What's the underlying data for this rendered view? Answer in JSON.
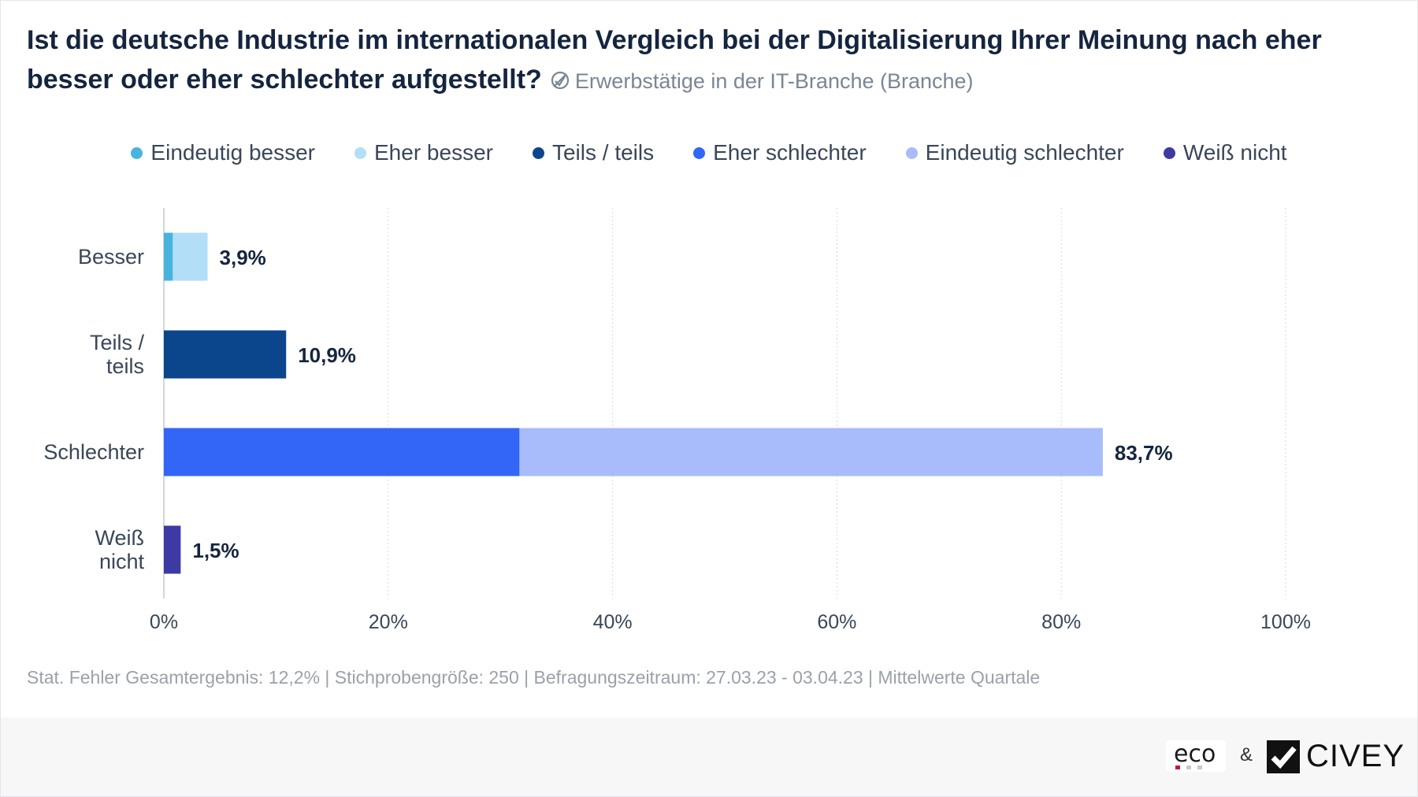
{
  "header": {
    "title": "Ist die deutsche Industrie im internationalen Vergleich bei der Digitalisierung Ihrer Meinung nach eher besser oder eher schlechter aufgestellt?",
    "filter_icon": "filter-off-icon",
    "subtitle": "Erwerbstätige in der IT-Branche (Branche)"
  },
  "legend": [
    {
      "label": "Eindeutig besser",
      "color": "#48b4de"
    },
    {
      "label": "Eher besser",
      "color": "#b3def7"
    },
    {
      "label": "Teils / teils",
      "color": "#0b468c"
    },
    {
      "label": "Eher schlechter",
      "color": "#3366f6"
    },
    {
      "label": "Eindeutig schlechter",
      "color": "#a8bcfb"
    },
    {
      "label": "Weiß nicht",
      "color": "#3d3aa3"
    }
  ],
  "chart_data": {
    "type": "bar",
    "orientation": "horizontal",
    "stacked": true,
    "categories": [
      [
        "Besser"
      ],
      [
        "Teils /",
        "teils"
      ],
      [
        "Schlechter"
      ],
      [
        "Weiß",
        "nicht"
      ]
    ],
    "totals_labels": [
      "3,9%",
      "10,9%",
      "83,7%",
      "1,5%"
    ],
    "segments": [
      [
        {
          "series": "Eindeutig besser",
          "value": 0.8,
          "color": "#48b4de"
        },
        {
          "series": "Eher besser",
          "value": 3.1,
          "color": "#b3def7"
        }
      ],
      [
        {
          "series": "Teils / teils",
          "value": 10.9,
          "color": "#0b468c"
        }
      ],
      [
        {
          "series": "Eher schlechter",
          "value": 31.7,
          "color": "#3366f6"
        },
        {
          "series": "Eindeutig schlechter",
          "value": 52.0,
          "color": "#a8bcfb"
        }
      ],
      [
        {
          "series": "Weiß nicht",
          "value": 1.5,
          "color": "#3d3aa3"
        }
      ]
    ],
    "xlim": [
      0,
      100
    ],
    "xticks": [
      "0%",
      "20%",
      "40%",
      "60%",
      "80%",
      "100%"
    ],
    "grid": true
  },
  "footnote": "Stat. Fehler Gesamtergebnis: 12,2% | Stichprobengröße: 250 | Befragungszeitraum: 27.03.23 - 03.04.23 | Mittelwerte Quartale",
  "footer": {
    "eco_logo": "eco",
    "ampersand": "&",
    "civey_logo": "CIVEY"
  }
}
